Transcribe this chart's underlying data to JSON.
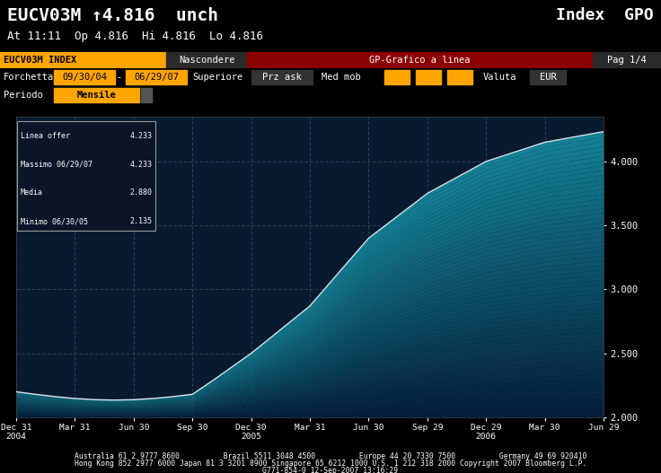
{
  "title_left": "EUCV03M ↑4.816  unch",
  "title_right": "Index  GPO",
  "subtitle": "At 11:11  Op 4.816  Hi 4.816  Lo 4.816",
  "bar1_label": "EUCV03M INDEX",
  "bar2_label": "Nascondere",
  "bar3_label": "GP-Grafico a linea",
  "bar4_label": "Pag 1/4",
  "row2_label1": "Forchetta",
  "row2_val1": "09/30/04",
  "row2_val2": "06/29/07",
  "row2_label3": "Superiore",
  "row2_label4": "Prz ask",
  "row2_label5": "Med mob",
  "row2_label6": "Valuta",
  "row2_val6": "EUR",
  "row3_label": "Periodo",
  "row3_val": "Mensile",
  "bg_color": "#000000",
  "chart_bg": "#0a1a2e",
  "grid_color": "#1a3a5a",
  "line_color": "#d8e8f0",
  "y_min": 2.0,
  "y_max": 4.233,
  "y_ticks": [
    2.0,
    2.5,
    3.0,
    3.5,
    4.0
  ],
  "legend_items": [
    [
      "Linea offer",
      "4.233"
    ],
    [
      "Massimo 06/29/07",
      "4.233"
    ],
    [
      "Media",
      "2.880"
    ],
    [
      "Minimo 06/30/05",
      "2.135"
    ]
  ],
  "x_labels": [
    "Dec 31\n2004",
    "Mar 31",
    "Jun 30",
    "Sep 30",
    "Dec 30\n2005",
    "Mar 31",
    "Jun 30",
    "Sep 29",
    "Dec 29\n2006",
    "Mar 30",
    "Jun 29"
  ],
  "footer1": "Australia 61 2 9777 8600          Brazil 5511 3048 4500          Europe 44 20 7330 7500          Germany 49 69 920410",
  "footer2": "Hong Kong 852 2977 6000 Japan 81 3 3201 8900 Singapore 65 6212 1000 U.S. 1 212 318 2000 Copyright 2007 Bloomberg L.P.",
  "footer3": "G771-854-0 12-Sep-2007 13:16:29",
  "orange": "#FFA500",
  "dark_btn": "#2a2a2a",
  "dark_red": "#8B0000"
}
